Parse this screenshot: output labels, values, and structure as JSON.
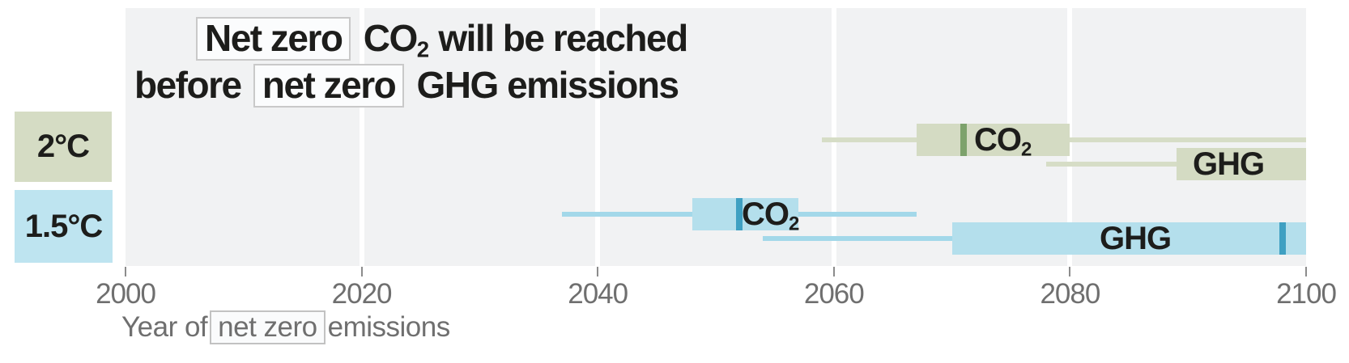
{
  "chart_data": {
    "type": "box-whisker-horizontal",
    "title_text": "Net zero CO2 will be reached before net zero GHG emissions",
    "title_lines": [
      {
        "parts": [
          {
            "t": "Net zero",
            "box": true
          },
          {
            "t": " CO"
          },
          {
            "t": "2",
            "sub": true
          },
          {
            "t": " will be reached"
          }
        ]
      },
      {
        "parts": [
          {
            "t": "before "
          },
          {
            "t": "net zero",
            "box": true
          },
          {
            "t": " GHG emissions"
          }
        ]
      }
    ],
    "xlabel_text": "Year of net zero emissions",
    "xlabel_parts": [
      {
        "t": "Year of"
      },
      {
        "t": "net zero",
        "box": true
      },
      {
        "t": "emissions"
      }
    ],
    "xlim": [
      2000,
      2100
    ],
    "x_ticks": [
      2000,
      2020,
      2040,
      2060,
      2080,
      2100
    ],
    "grid": true,
    "plot_bg": "#f1f2f3",
    "grid_color": "#ffffff",
    "title_color": "#1d1d1b",
    "axis_text_color": "#6f6f6f",
    "legend_position": "none",
    "groups": [
      {
        "label": "2°C",
        "label_bg": "#d5dcc4",
        "fill": "#d4dbc3",
        "whisker_color": "#d6ddc6",
        "median_color": "#7da26c",
        "series": [
          {
            "name": "CO2",
            "label_parts": [
              {
                "t": "CO"
              },
              {
                "t": "2",
                "sub": true
              }
            ],
            "whisker": [
              2059,
              2100
            ],
            "box": [
              2067,
              2080
            ],
            "median": 2071
          },
          {
            "name": "GHG",
            "label_parts": [
              {
                "t": "GHG"
              }
            ],
            "whisker": [
              2078,
              2100
            ],
            "box": [
              2089,
              2100
            ],
            "median": null
          }
        ]
      },
      {
        "label": "1.5°C",
        "label_bg": "#bee4f0",
        "fill": "#b4dfec",
        "whisker_color": "#a3d8e9",
        "median_color": "#3fa0c2",
        "series": [
          {
            "name": "CO2",
            "label_parts": [
              {
                "t": "CO"
              },
              {
                "t": "2",
                "sub": true
              }
            ],
            "whisker": [
              2037,
              2067
            ],
            "box": [
              2048,
              2057
            ],
            "median": 2052
          },
          {
            "name": "GHG",
            "label_parts": [
              {
                "t": "GHG"
              }
            ],
            "whisker": [
              2054,
              2100
            ],
            "box": [
              2070,
              2100
            ],
            "median": 2098
          }
        ]
      }
    ]
  }
}
